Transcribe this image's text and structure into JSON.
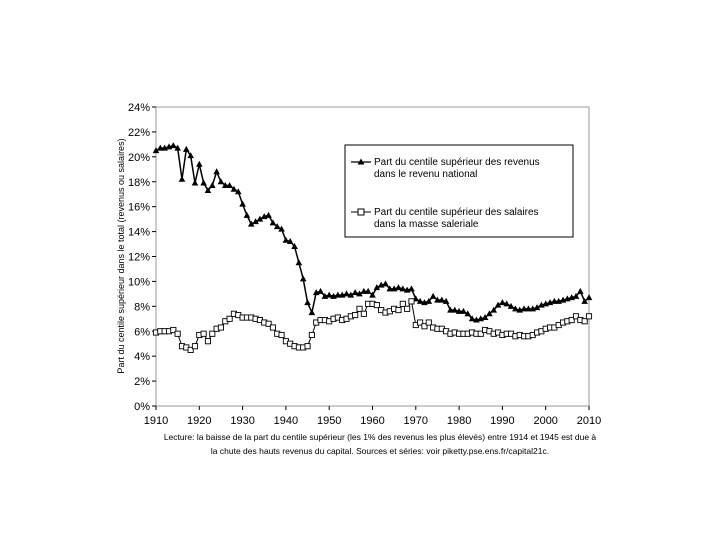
{
  "chart_data": {
    "type": "line",
    "ylabel": "Part du centile supérieur dans le total (revenus ou salaires)",
    "xlim": [
      1910,
      2010
    ],
    "ylim": [
      0,
      0.24
    ],
    "x_ticks": [
      "1910",
      "1920",
      "1930",
      "1940",
      "1950",
      "1960",
      "1970",
      "1980",
      "1990",
      "2000",
      "2010"
    ],
    "y_ticks": [
      "0%",
      "2%",
      "4%",
      "6%",
      "8%",
      "10%",
      "12%",
      "14%",
      "16%",
      "18%",
      "20%",
      "22%",
      "24%"
    ],
    "grid": false,
    "legend_position": "top-right",
    "series": [
      {
        "name": "Part du centile supérieur des revenus dans le revenu national",
        "marker": "filled-triangle",
        "color": "#000000",
        "x": [
          1910,
          1911,
          1912,
          1913,
          1914,
          1915,
          1916,
          1917,
          1918,
          1919,
          1920,
          1921,
          1922,
          1923,
          1924,
          1925,
          1926,
          1927,
          1928,
          1929,
          1930,
          1931,
          1932,
          1933,
          1934,
          1935,
          1936,
          1937,
          1938,
          1939,
          1940,
          1941,
          1942,
          1943,
          1944,
          1945,
          1946,
          1947,
          1948,
          1949,
          1950,
          1951,
          1952,
          1953,
          1954,
          1955,
          1956,
          1957,
          1958,
          1959,
          1960,
          1961,
          1962,
          1963,
          1964,
          1965,
          1966,
          1967,
          1968,
          1969,
          1970,
          1971,
          1972,
          1973,
          1974,
          1975,
          1976,
          1977,
          1978,
          1979,
          1980,
          1981,
          1982,
          1983,
          1984,
          1985,
          1986,
          1987,
          1988,
          1989,
          1990,
          1991,
          1992,
          1993,
          1994,
          1995,
          1996,
          1997,
          1998,
          1999,
          2000,
          2001,
          2002,
          2003,
          2004,
          2005,
          2006,
          2007,
          2008,
          2009,
          2010
        ],
        "values": [
          0.205,
          0.207,
          0.207,
          0.208,
          0.209,
          0.207,
          0.182,
          0.206,
          0.201,
          0.179,
          0.194,
          0.179,
          0.173,
          0.177,
          0.188,
          0.18,
          0.177,
          0.177,
          0.174,
          0.172,
          0.162,
          0.153,
          0.146,
          0.148,
          0.15,
          0.152,
          0.153,
          0.147,
          0.144,
          0.142,
          0.133,
          0.132,
          0.128,
          0.115,
          0.102,
          0.083,
          0.075,
          0.091,
          0.092,
          0.088,
          0.089,
          0.088,
          0.089,
          0.089,
          0.09,
          0.089,
          0.091,
          0.09,
          0.092,
          0.092,
          0.089,
          0.095,
          0.097,
          0.098,
          0.094,
          0.094,
          0.095,
          0.094,
          0.093,
          0.094,
          0.086,
          0.084,
          0.083,
          0.084,
          0.088,
          0.085,
          0.085,
          0.084,
          0.077,
          0.077,
          0.076,
          0.076,
          0.074,
          0.07,
          0.069,
          0.07,
          0.071,
          0.074,
          0.077,
          0.081,
          0.083,
          0.082,
          0.08,
          0.078,
          0.077,
          0.078,
          0.078,
          0.078,
          0.079,
          0.081,
          0.082,
          0.083,
          0.084,
          0.084,
          0.085,
          0.086,
          0.087,
          0.088,
          0.092,
          0.084,
          0.087
        ]
      },
      {
        "name": "Part du centile supérieur des salaires dans la masse saleriale",
        "marker": "hollow-square",
        "color": "#000000",
        "x": [
          1910,
          1911,
          1912,
          1913,
          1914,
          1915,
          1916,
          1917,
          1918,
          1919,
          1920,
          1921,
          1922,
          1923,
          1924,
          1925,
          1926,
          1927,
          1928,
          1929,
          1930,
          1931,
          1932,
          1933,
          1934,
          1935,
          1936,
          1937,
          1938,
          1939,
          1940,
          1941,
          1942,
          1943,
          1944,
          1945,
          1946,
          1947,
          1948,
          1949,
          1950,
          1951,
          1952,
          1953,
          1954,
          1955,
          1956,
          1957,
          1958,
          1959,
          1960,
          1961,
          1962,
          1963,
          1964,
          1965,
          1966,
          1967,
          1968,
          1969,
          1970,
          1971,
          1972,
          1973,
          1974,
          1975,
          1976,
          1977,
          1978,
          1979,
          1980,
          1981,
          1982,
          1983,
          1984,
          1985,
          1986,
          1987,
          1988,
          1989,
          1990,
          1991,
          1992,
          1993,
          1994,
          1995,
          1996,
          1997,
          1998,
          1999,
          2000,
          2001,
          2002,
          2003,
          2004,
          2005,
          2006,
          2007,
          2008,
          2009,
          2010
        ],
        "values": [
          0.059,
          0.06,
          0.06,
          0.06,
          0.061,
          0.058,
          0.048,
          0.047,
          0.045,
          0.048,
          0.057,
          0.058,
          0.052,
          0.058,
          0.062,
          0.063,
          0.068,
          0.07,
          0.074,
          0.073,
          0.071,
          0.071,
          0.071,
          0.07,
          0.069,
          0.067,
          0.066,
          0.063,
          0.058,
          0.057,
          0.052,
          0.05,
          0.048,
          0.047,
          0.047,
          0.048,
          0.057,
          0.067,
          0.069,
          0.069,
          0.068,
          0.07,
          0.071,
          0.069,
          0.07,
          0.072,
          0.073,
          0.078,
          0.074,
          0.082,
          0.082,
          0.081,
          0.077,
          0.075,
          0.076,
          0.078,
          0.077,
          0.082,
          0.078,
          0.084,
          0.065,
          0.067,
          0.064,
          0.067,
          0.063,
          0.062,
          0.062,
          0.06,
          0.058,
          0.059,
          0.058,
          0.058,
          0.058,
          0.059,
          0.058,
          0.058,
          0.061,
          0.06,
          0.058,
          0.059,
          0.057,
          0.058,
          0.058,
          0.056,
          0.057,
          0.056,
          0.056,
          0.057,
          0.059,
          0.06,
          0.062,
          0.063,
          0.063,
          0.065,
          0.067,
          0.068,
          0.069,
          0.072,
          0.069,
          0.068,
          0.072
        ]
      }
    ]
  },
  "note": {
    "line1": "Lecture: la baisse de la part du centile supérieur (les 1% des revenus les plus élevés) entre 1914 et 1945 est due à",
    "line2": "la chute des hauts revenus du capital. Sources et séries: voir piketty.pse.ens.fr/capital21c."
  }
}
